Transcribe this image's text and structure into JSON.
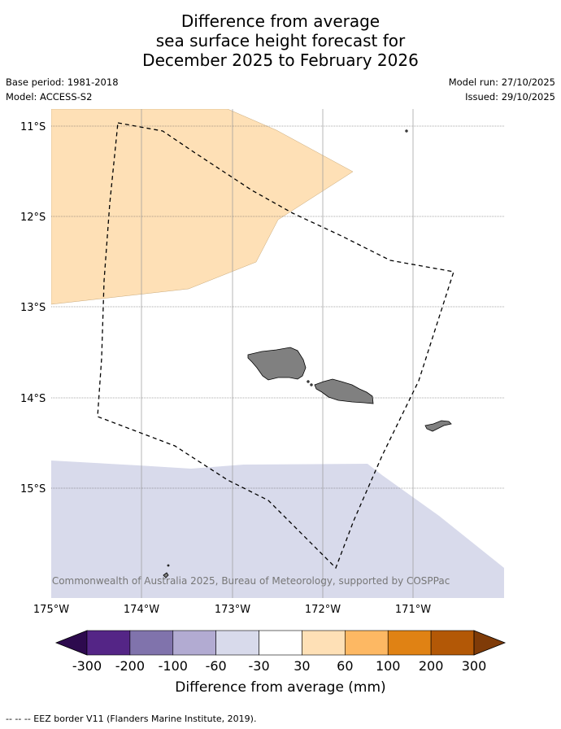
{
  "title": {
    "line1": "Difference from average",
    "line2": "sea surface height forecast for",
    "line3": "December 2025 to February 2026"
  },
  "meta": {
    "base_period": "Base period: 1981-2018",
    "model": "Model: ACCESS-S2",
    "model_run": "Model run: 27/10/2025",
    "issued": "Issued: 29/10/2025"
  },
  "map": {
    "lat_labels": [
      "11°S",
      "12°S",
      "13°S",
      "14°S",
      "15°S"
    ],
    "lon_labels": [
      "175°W",
      "174°W",
      "173°W",
      "172°W",
      "171°W"
    ],
    "copyright": "© Commonwealth of Australia 2025, Bureau of Meteorology, supported by COSPPac",
    "land_color": "#808080",
    "eez_line_style": "dashed"
  },
  "colorbar": {
    "labels": [
      "-300",
      "-200",
      "-100",
      "-60",
      "-30",
      "30",
      "60",
      "100",
      "200",
      "300"
    ],
    "colors": [
      "#2d0a4e",
      "#542586",
      "#8073ac",
      "#b2abd2",
      "#d8daeb",
      "#ffffff",
      "#fee0b6",
      "#fdb863",
      "#e08214",
      "#b35806",
      "#7f3b08"
    ],
    "title": "Difference from average (mm)"
  },
  "footnote": "--  --  -- EEZ border V11 (Flanders Marine Institute, 2019)."
}
